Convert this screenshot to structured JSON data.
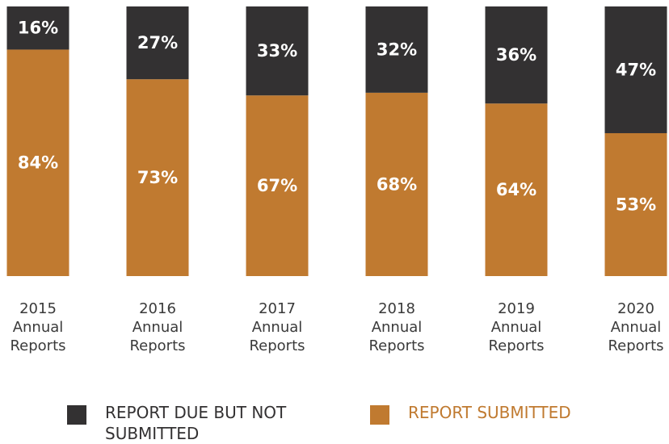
{
  "chart_data": {
    "type": "bar",
    "stacked": true,
    "percent_stacked": true,
    "categories": [
      [
        "2015",
        "Annual",
        "Reports"
      ],
      [
        "2016",
        "Annual",
        "Reports"
      ],
      [
        "2017",
        "Annual",
        "Reports"
      ],
      [
        "2018",
        "Annual",
        "Reports"
      ],
      [
        "2019",
        "Annual",
        "Reports"
      ],
      [
        "2020",
        "Annual",
        "Reports"
      ]
    ],
    "series": [
      {
        "name": "REPORT SUBMITTED",
        "values": [
          84,
          73,
          67,
          68,
          64,
          53
        ],
        "labels": [
          "84%",
          "73%",
          "67%",
          "68%",
          "64%",
          "53%"
        ],
        "color": "#c07a30"
      },
      {
        "name": "REPORT DUE BUT NOT SUBMITTED",
        "values": [
          16,
          27,
          33,
          32,
          36,
          47
        ],
        "labels": [
          "16%",
          "27%",
          "33%",
          "32%",
          "36%",
          "47%"
        ],
        "color": "#333132"
      }
    ],
    "ylim": [
      0,
      100
    ],
    "grid": false,
    "legend_position": "bottom"
  },
  "legend": [
    {
      "text": "REPORT DUE BUT NOT SUBMITTED",
      "color": "#333132",
      "text_color": "#333132"
    },
    {
      "text": "REPORT SUBMITTED",
      "color": "#c07a30",
      "text_color": "#c07a30"
    }
  ]
}
